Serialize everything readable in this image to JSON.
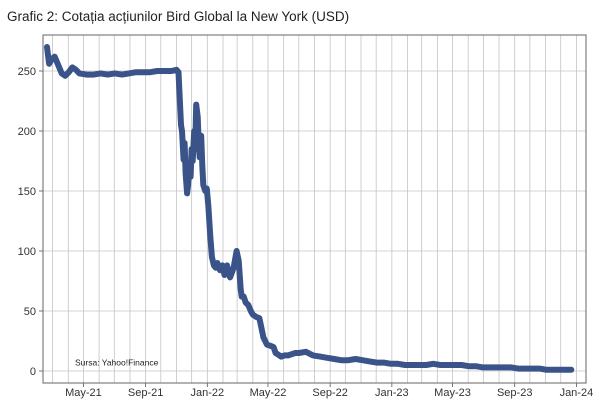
{
  "chart_data": {
    "type": "line",
    "title": "Grafic 2: Cotația acțiunilor Bird Global la New York (USD)",
    "xlabel": "",
    "ylabel": "",
    "source": "Sursa: Yahoo!Finance",
    "x_ticks": [
      "May-21",
      "Sep-21",
      "Jan-22",
      "May-22",
      "Sep-22",
      "Jan-23",
      "May-23",
      "Sep-23",
      "Jan-24"
    ],
    "y_ticks": [
      0,
      50,
      100,
      150,
      200,
      250
    ],
    "xlim": [
      "2021-02-10",
      "2024-01-20"
    ],
    "ylim": [
      -10,
      280
    ],
    "grid": true,
    "legend": "none",
    "series_color": "#3a5489",
    "series": [
      {
        "x": [
          "2021-02-18",
          "2021-02-22",
          "2021-02-26",
          "2021-03-05",
          "2021-03-12",
          "2021-03-19",
          "2021-03-26",
          "2021-04-02",
          "2021-04-09",
          "2021-04-16",
          "2021-04-23",
          "2021-05-07",
          "2021-05-21",
          "2021-06-04",
          "2021-06-18",
          "2021-07-02",
          "2021-07-16",
          "2021-07-30",
          "2021-08-13",
          "2021-08-27",
          "2021-09-10",
          "2021-09-24",
          "2021-10-08",
          "2021-10-22",
          "2021-11-01",
          "2021-11-05",
          "2021-11-10",
          "2021-11-12",
          "2021-11-15",
          "2021-11-17",
          "2021-11-19",
          "2021-11-22",
          "2021-11-24",
          "2021-11-26",
          "2021-11-29",
          "2021-12-01",
          "2021-12-03",
          "2021-12-06",
          "2021-12-08",
          "2021-12-10",
          "2021-12-13",
          "2021-12-15",
          "2021-12-17",
          "2021-12-20",
          "2021-12-22",
          "2021-12-24",
          "2021-12-28",
          "2021-12-31",
          "2022-01-03",
          "2022-01-07",
          "2022-01-10",
          "2022-01-14",
          "2022-01-18",
          "2022-01-21",
          "2022-01-26",
          "2022-01-31",
          "2022-02-04",
          "2022-02-09",
          "2022-02-15",
          "2022-02-22",
          "2022-02-28",
          "2022-03-04",
          "2022-03-08",
          "2022-03-10",
          "2022-03-14",
          "2022-03-18",
          "2022-03-23",
          "2022-03-28",
          "2022-04-01",
          "2022-04-08",
          "2022-04-14",
          "2022-04-22",
          "2022-04-29",
          "2022-05-06",
          "2022-05-12",
          "2022-05-16",
          "2022-05-20",
          "2022-05-27",
          "2022-06-03",
          "2022-06-10",
          "2022-06-17",
          "2022-06-24",
          "2022-07-01",
          "2022-07-15",
          "2022-07-29",
          "2022-08-12",
          "2022-08-26",
          "2022-09-09",
          "2022-09-23",
          "2022-10-07",
          "2022-10-21",
          "2022-11-04",
          "2022-11-18",
          "2022-12-02",
          "2022-12-16",
          "2022-12-30",
          "2023-01-13",
          "2023-01-27",
          "2023-02-10",
          "2023-02-24",
          "2023-03-10",
          "2023-03-24",
          "2023-04-07",
          "2023-04-21",
          "2023-05-05",
          "2023-05-19",
          "2023-06-02",
          "2023-06-16",
          "2023-06-30",
          "2023-07-14",
          "2023-07-28",
          "2023-08-11",
          "2023-08-25",
          "2023-09-08",
          "2023-09-22",
          "2023-10-06",
          "2023-10-20",
          "2023-11-03",
          "2023-11-17",
          "2023-12-01",
          "2023-12-15",
          "2023-12-22"
        ],
        "y": [
          270,
          256,
          259,
          262,
          255,
          248,
          246,
          249,
          253,
          251,
          248,
          247,
          247,
          248,
          247,
          248,
          247,
          248,
          249,
          249,
          249,
          250,
          250,
          250,
          251,
          249,
          205,
          200,
          176,
          190,
          165,
          148,
          155,
          172,
          162,
          185,
          175,
          200,
          185,
          222,
          212,
          190,
          178,
          196,
          171,
          155,
          150,
          152,
          138,
          112,
          95,
          88,
          86,
          90,
          84,
          88,
          80,
          88,
          78,
          86,
          100,
          92,
          68,
          62,
          62,
          57,
          55,
          50,
          47,
          45,
          44,
          28,
          22,
          21,
          20,
          15,
          14,
          12,
          13,
          13,
          14,
          15,
          15,
          16,
          13,
          12,
          11,
          10,
          9,
          9,
          10,
          9,
          8,
          7,
          7,
          6,
          6,
          5,
          5,
          5,
          5,
          6,
          5,
          5,
          5,
          5,
          4,
          4,
          3,
          3,
          3,
          3,
          3,
          2,
          2,
          2,
          2,
          1,
          1,
          1,
          1,
          1
        ]
      }
    ]
  }
}
